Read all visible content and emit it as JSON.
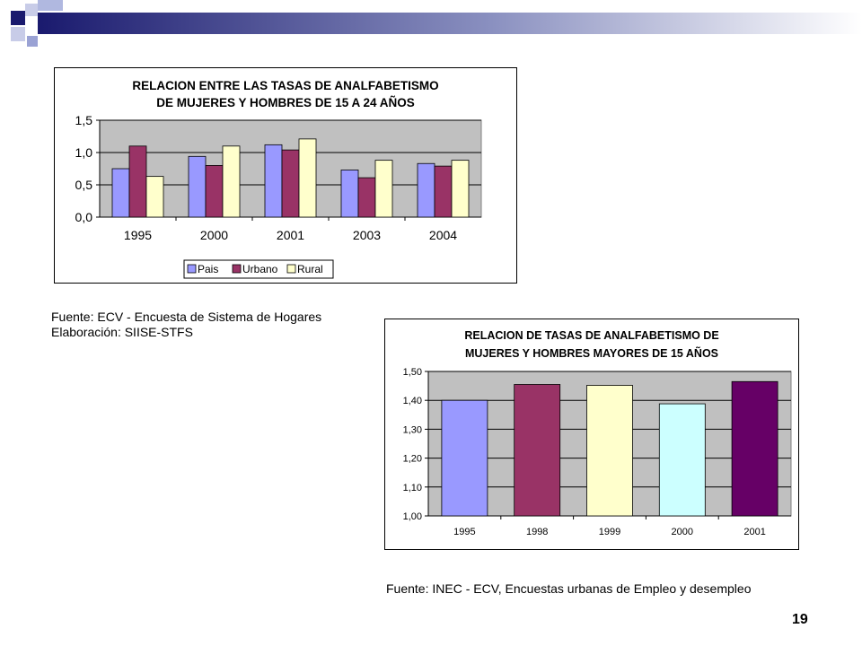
{
  "colors": {
    "plot_bg": "#c0c0c0",
    "accent_navy": "#1a1a6e",
    "accent_blue": "#4a5aa8",
    "accent_light": "#b0b8e0"
  },
  "chart_data": [
    {
      "type": "bar",
      "title_lines": [
        "RELACION ENTRE LAS TASAS DE ANALFABETISMO",
        "DE MUJERES Y HOMBRES DE 15 A 24 AÑOS"
      ],
      "categories": [
        "1995",
        "2000",
        "2001",
        "2003",
        "2004"
      ],
      "series": [
        {
          "name": "Pais",
          "color": "#9999ff",
          "values": [
            0.75,
            0.94,
            1.12,
            0.73,
            0.83
          ]
        },
        {
          "name": "Urbano",
          "color": "#993366",
          "values": [
            1.1,
            0.8,
            1.04,
            0.61,
            0.79
          ]
        },
        {
          "name": "Rural",
          "color": "#ffffcc",
          "values": [
            0.63,
            1.1,
            1.21,
            0.88,
            0.88
          ]
        }
      ],
      "yticks": [
        "0,0",
        "0,5",
        "1,0",
        "1,5"
      ],
      "ylim": [
        0,
        1.5
      ],
      "grid": true,
      "legend": "bottom"
    },
    {
      "type": "bar",
      "title_lines": [
        "RELACION DE TASAS DE ANALFABETISMO DE",
        "MUJERES Y HOMBRES MAYORES DE 15 AÑOS"
      ],
      "categories": [
        "1995",
        "1998",
        "1999",
        "2000",
        "2001"
      ],
      "values": [
        1.4,
        1.455,
        1.452,
        1.388,
        1.465
      ],
      "colors": [
        "#9999ff",
        "#993366",
        "#ffffcc",
        "#ccffff",
        "#660066"
      ],
      "yticks": [
        "1,00",
        "1,10",
        "1,20",
        "1,30",
        "1,40",
        "1,50"
      ],
      "ylim": [
        1.0,
        1.5
      ],
      "grid": true
    }
  ],
  "sources": {
    "chart1_line1": "Fuente: ECV - Encuesta de Sistema de Hogares",
    "chart1_line2": "Elaboración: SIISE-STFS",
    "chart2": "Fuente: INEC - ECV, Encuestas urbanas de Empleo y desempleo"
  },
  "page_number": "19"
}
